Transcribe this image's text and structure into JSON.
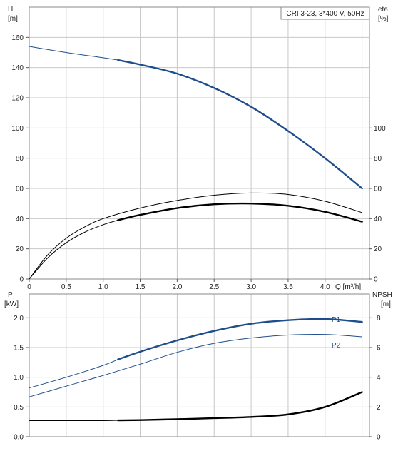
{
  "chart_data": [
    {
      "type": "line",
      "title": "CRI 3-23, 3*400 V, 50Hz",
      "xlabel": "Q [m³/h]",
      "ylabel_left": [
        "H",
        "[m]"
      ],
      "ylabel_right": [
        "eta",
        "[%]"
      ],
      "xlim": [
        0,
        4.6
      ],
      "ylim_left": [
        0,
        180
      ],
      "ylim_right": [
        0,
        180
      ],
      "x_ticks": [
        0,
        0.5,
        1.0,
        1.5,
        2.0,
        2.5,
        3.0,
        3.5,
        4.0
      ],
      "x_tick_labels": [
        "0",
        "0.5",
        "1.0",
        "1.5",
        "2.0",
        "2.5",
        "3.0",
        "3.5",
        "4.0"
      ],
      "y_ticks_left": [
        0,
        20,
        40,
        60,
        80,
        100,
        120,
        140,
        160
      ],
      "y_ticks_right": [
        0,
        20,
        40,
        60,
        80,
        100
      ],
      "grid": true,
      "series": [
        {
          "color": "#1e4d8c",
          "axis": "left",
          "x": [
            0,
            0.5,
            1.0,
            1.2,
            1.5,
            2.0,
            2.5,
            3.0,
            3.5,
            4.0,
            4.5
          ],
          "y": [
            154,
            150,
            146.5,
            145,
            142,
            136,
            126.5,
            114,
            98,
            80,
            60
          ],
          "thick_from": 1.2
        },
        {
          "color": "#000000",
          "axis": "right",
          "x": [
            0,
            0.25,
            0.5,
            0.75,
            1.0,
            1.2,
            1.5,
            2.0,
            2.5,
            3.0,
            3.5,
            4.0,
            4.5
          ],
          "y": [
            0,
            14,
            24,
            31,
            36,
            39,
            42.5,
            47,
            49.5,
            50,
            48.5,
            44.5,
            38
          ],
          "thick_from": 1.2
        },
        {
          "color": "#000000",
          "axis": "right",
          "x": [
            0,
            0.25,
            0.5,
            0.75,
            1.0,
            1.5,
            2.0,
            2.5,
            3.0,
            3.5,
            4.0,
            4.5
          ],
          "y": [
            0,
            16,
            27,
            34.5,
            40,
            47,
            52,
            55.5,
            57,
            56,
            51.5,
            44
          ]
        }
      ]
    },
    {
      "type": "line",
      "xlabel": "",
      "ylabel_left": [
        "P",
        "[kW]"
      ],
      "ylabel_right": [
        "NPSH",
        "[m]"
      ],
      "xlim": [
        0,
        4.6
      ],
      "ylim_left": [
        0,
        2.4
      ],
      "ylim_right": [
        0,
        9.6
      ],
      "y_ticks_left": [
        0,
        0.5,
        1.0,
        1.5,
        2.0
      ],
      "y_tick_labels_left": [
        "0.0",
        "0.5",
        "1.0",
        "1.5",
        "2.0"
      ],
      "y_ticks_right": [
        0,
        2,
        4,
        6,
        8
      ],
      "grid": true,
      "series": [
        {
          "name": "P1",
          "color": "#1e4d8c",
          "axis": "left",
          "x": [
            0,
            0.5,
            1.0,
            1.2,
            1.5,
            2.0,
            2.5,
            3.0,
            3.5,
            4.0,
            4.5
          ],
          "y": [
            0.82,
            1.0,
            1.2,
            1.3,
            1.43,
            1.62,
            1.78,
            1.9,
            1.96,
            1.98,
            1.93
          ],
          "thick_from": 1.2
        },
        {
          "name": "P2",
          "color": "#1e4d8c",
          "axis": "left",
          "x": [
            0,
            0.5,
            1.0,
            1.5,
            2.0,
            2.5,
            3.0,
            3.5,
            4.0,
            4.5
          ],
          "y": [
            0.67,
            0.85,
            1.03,
            1.22,
            1.42,
            1.57,
            1.66,
            1.71,
            1.72,
            1.68
          ]
        },
        {
          "color": "#000000",
          "axis": "right",
          "x": [
            0,
            0.5,
            1.0,
            1.2,
            1.5,
            2.0,
            2.5,
            3.0,
            3.5,
            4.0,
            4.5
          ],
          "y": [
            1.08,
            1.08,
            1.08,
            1.1,
            1.12,
            1.18,
            1.25,
            1.33,
            1.5,
            2.0,
            3.0
          ],
          "thick_from": 1.2
        }
      ]
    }
  ]
}
